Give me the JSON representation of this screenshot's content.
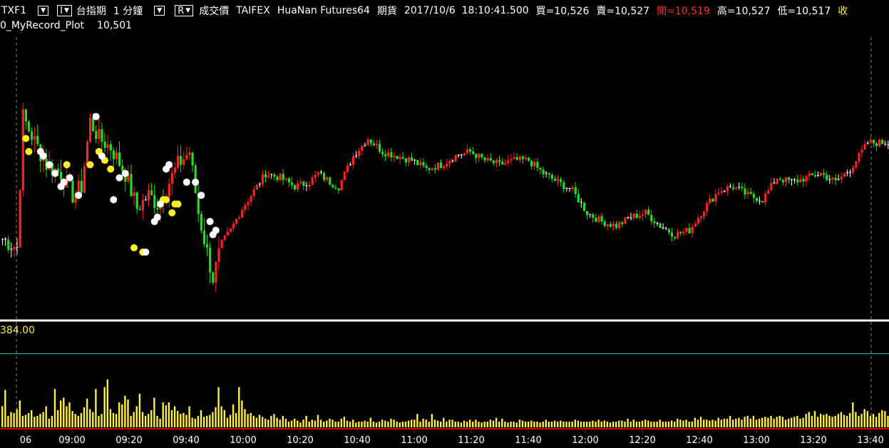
{
  "header": {
    "symbol": "TXF1",
    "product_name": "台指期",
    "interval": "1 分鐘",
    "mode_label": "R",
    "price_type": "成交價",
    "exchange": "TAIFEX",
    "broker": "HuaNan Futures64",
    "market": "期貨",
    "timestamp": "2017/10/6  18:10:41.500",
    "bid": "買=10,526",
    "ask": "賣=10,527",
    "open": "開=10,519",
    "high": "高=10,527",
    "low": "低=10,517",
    "overflow_char": "收",
    "plot_name": "0_MyRecord_Plot",
    "plot_value": "10,501",
    "volume_label": "384.00"
  },
  "colors": {
    "up": "#ff2020",
    "down": "#22dd22",
    "doji": "#ffffff",
    "volume": "#ffee44",
    "grid": "#888888",
    "ref_line": "#20c0c0",
    "axis": "#cc0000",
    "text": "#ffffff"
  },
  "chart_data": {
    "type": "candlestick",
    "time_ticks": [
      "06",
      "09:00",
      "09:20",
      "09:40",
      "10:00",
      "10:20",
      "10:40",
      "11:00",
      "11:20",
      "11:40",
      "12:00",
      "12:20",
      "12:40",
      "13:00",
      "13:20",
      "13:40"
    ],
    "price_path": [
      [
        0,
        10505
      ],
      [
        5,
        10503
      ],
      [
        7,
        10533
      ],
      [
        9,
        10530
      ],
      [
        15,
        10522
      ],
      [
        20,
        10520
      ],
      [
        24,
        10515
      ],
      [
        27,
        10517
      ],
      [
        30,
        10532
      ],
      [
        33,
        10528
      ],
      [
        37,
        10526
      ],
      [
        42,
        10520
      ],
      [
        46,
        10512
      ],
      [
        50,
        10515
      ],
      [
        53,
        10513
      ],
      [
        57,
        10518
      ],
      [
        60,
        10522
      ],
      [
        64,
        10525
      ],
      [
        67,
        10511
      ],
      [
        72,
        10496
      ],
      [
        75,
        10504
      ],
      [
        78,
        10507
      ],
      [
        82,
        10512
      ],
      [
        85,
        10515
      ],
      [
        90,
        10520
      ],
      [
        95,
        10519
      ],
      [
        100,
        10517
      ],
      [
        105,
        10518
      ],
      [
        108,
        10520
      ],
      [
        112,
        10518
      ],
      [
        115,
        10517
      ],
      [
        120,
        10524
      ],
      [
        125,
        10528
      ],
      [
        130,
        10525
      ],
      [
        135,
        10524
      ],
      [
        140,
        10523
      ],
      [
        145,
        10521
      ],
      [
        150,
        10522
      ],
      [
        155,
        10524
      ],
      [
        160,
        10525
      ],
      [
        165,
        10523
      ],
      [
        170,
        10522
      ],
      [
        175,
        10523
      ],
      [
        180,
        10523
      ],
      [
        185,
        10520
      ],
      [
        190,
        10518
      ],
      [
        195,
        10516
      ],
      [
        200,
        10511
      ],
      [
        205,
        10509
      ],
      [
        210,
        10508
      ],
      [
        215,
        10510
      ],
      [
        220,
        10511
      ],
      [
        225,
        10508
      ],
      [
        230,
        10506
      ],
      [
        235,
        10507
      ],
      [
        240,
        10512
      ],
      [
        245,
        10516
      ],
      [
        250,
        10517
      ],
      [
        255,
        10515
      ],
      [
        260,
        10514
      ],
      [
        265,
        10519
      ],
      [
        270,
        10518
      ],
      [
        275,
        10519
      ],
      [
        280,
        10520
      ],
      [
        285,
        10518
      ],
      [
        290,
        10521
      ],
      [
        296,
        10527
      ]
    ],
    "volume_ref_line": 384,
    "volume_ylim": [
      0,
      520
    ],
    "volume_series": [
      110,
      195,
      60,
      80,
      75,
      95,
      140,
      60,
      65,
      75,
      90,
      55,
      60,
      70,
      80,
      110,
      45,
      60,
      200,
      90,
      140,
      155,
      110,
      130,
      85,
      70,
      60,
      75,
      105,
      150,
      95,
      80,
      200,
      60,
      70,
      210,
      250,
      95,
      75,
      70,
      130,
      120,
      165,
      145,
      60,
      80,
      110,
      175,
      80,
      60,
      70,
      90,
      155,
      60,
      45,
      130,
      115,
      130,
      90,
      110,
      85,
      70,
      75,
      65,
      110,
      50,
      45,
      60,
      90,
      55,
      60,
      65,
      80,
      105,
      210,
      110,
      90,
      50,
      65,
      120,
      75,
      210,
      140,
      95,
      70,
      75,
      60,
      50,
      65,
      55,
      45,
      40,
      60,
      70,
      50,
      40,
      60,
      45,
      30,
      35,
      45,
      35,
      25,
      40,
      60,
      30,
      40,
      35,
      65,
      40,
      30,
      35,
      45,
      40,
      30,
      30,
      45,
      55,
      35,
      30,
      40,
      25,
      30,
      30,
      35,
      30,
      50,
      30,
      25,
      30,
      40,
      35,
      30,
      45,
      40,
      30,
      25,
      30,
      30,
      35,
      40,
      40,
      70,
      30,
      45,
      40,
      30,
      70,
      40,
      35,
      30,
      50,
      30,
      40,
      40,
      30,
      30,
      25,
      35,
      30,
      40,
      30,
      40,
      30,
      25,
      30,
      30,
      40,
      35,
      50,
      30,
      45,
      30,
      25,
      30,
      30,
      25,
      40,
      35,
      30,
      30,
      35,
      30,
      30,
      25,
      30,
      40,
      30,
      30,
      35,
      30,
      35,
      30,
      30,
      30,
      30,
      40,
      35,
      30,
      30,
      30,
      30,
      35,
      30,
      40,
      30,
      35,
      30,
      25,
      30,
      30,
      35,
      35,
      30,
      45,
      30,
      40,
      30,
      30,
      35,
      40,
      35,
      30,
      30,
      30,
      40,
      30,
      30,
      30,
      35,
      30,
      45,
      40,
      35,
      40,
      30,
      30,
      50,
      40,
      55,
      40,
      40,
      35,
      40,
      35,
      50,
      40,
      45,
      45,
      60,
      40,
      45,
      50,
      40,
      55,
      60,
      45,
      60,
      40,
      45,
      50,
      55,
      50,
      60,
      45,
      55,
      60,
      55,
      40,
      45,
      50,
      55,
      60,
      45,
      50,
      70,
      80,
      60,
      85,
      55,
      70,
      65,
      70,
      60,
      55,
      60,
      70,
      80,
      65,
      60,
      75,
      130,
      80,
      60,
      70,
      95,
      85,
      60,
      70,
      55,
      75,
      90,
      85,
      60,
      75,
      70,
      50,
      60,
      75,
      65,
      130
    ]
  },
  "markers": {
    "yellow": [
      [
        8,
        10528
      ],
      [
        9,
        10525
      ],
      [
        22,
        10522
      ],
      [
        30,
        10522
      ],
      [
        33,
        10525
      ],
      [
        35,
        10523
      ],
      [
        37,
        10521
      ],
      [
        45,
        10503
      ],
      [
        48,
        10502
      ],
      [
        55,
        10514
      ],
      [
        56,
        10514
      ],
      [
        58,
        10511
      ],
      [
        59,
        10513
      ],
      [
        60,
        10513
      ]
    ],
    "white": [
      [
        13,
        10525
      ],
      [
        14,
        10524
      ],
      [
        16,
        10522
      ],
      [
        18,
        10520
      ],
      [
        20,
        10517
      ],
      [
        21,
        10518
      ],
      [
        23,
        10519
      ],
      [
        26,
        10515
      ],
      [
        32,
        10533
      ],
      [
        34,
        10524
      ],
      [
        38,
        10514
      ],
      [
        40,
        10519
      ],
      [
        42,
        10520
      ],
      [
        49,
        10502
      ],
      [
        52,
        10509
      ],
      [
        53,
        10510
      ],
      [
        54,
        10513
      ],
      [
        56,
        10521
      ],
      [
        57,
        10522
      ],
      [
        63,
        10518
      ],
      [
        66,
        10518
      ],
      [
        68,
        10515
      ],
      [
        71,
        10509
      ],
      [
        72,
        10506
      ],
      [
        73,
        10507
      ]
    ]
  }
}
